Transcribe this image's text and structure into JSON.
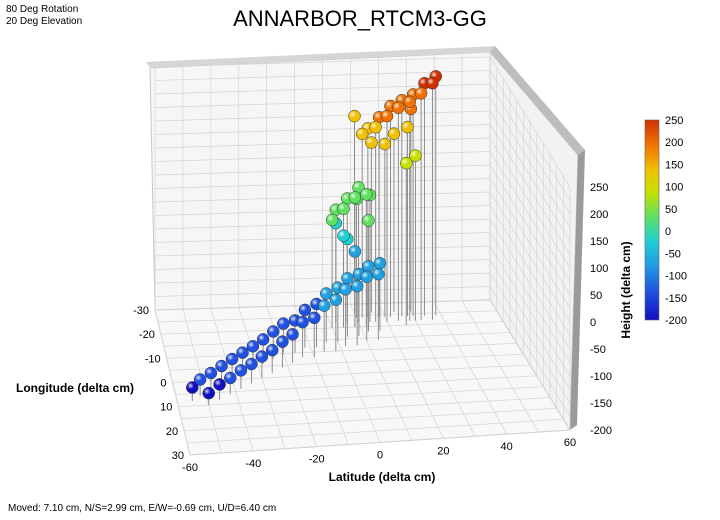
{
  "view": {
    "rotation_label": "80 Deg Rotation",
    "elevation_label": "20 Deg Elevation"
  },
  "status": {
    "text": "Moved: 7.10 cm, N/S=2.99 cm, E/W=-0.69 cm, U/D=6.40 cm"
  },
  "chart_data": {
    "type": "scatter",
    "title": "ANNARBOR_RTCM3-GG",
    "xlabel": "Latitude (delta cm)",
    "ylabel": "Longitude (delta cm)",
    "zlabel": "Height (delta cm)",
    "xlim": [
      -60,
      60
    ],
    "ylim": [
      -30,
      30
    ],
    "zlim": [
      -200,
      250
    ],
    "x_ticks": [
      "-60",
      "-40",
      "-20",
      "0",
      "20",
      "40",
      "60"
    ],
    "y_ticks": [
      "-30",
      "-20",
      "-10",
      "0",
      "10",
      "20",
      "30"
    ],
    "z_ticks": [
      "-200",
      "-150",
      "-100",
      "-50",
      "0",
      "50",
      "100",
      "150",
      "200",
      "250"
    ],
    "grid": true,
    "colorbar": {
      "label": "Height (delta cm)",
      "range": [
        -200,
        250
      ],
      "ticks": [
        "250",
        "200",
        "150",
        "100",
        "50",
        "0",
        "-50",
        "-100",
        "-150",
        "-200"
      ],
      "colors": [
        "#d03000",
        "#f07000",
        "#f0c000",
        "#c8e000",
        "#60e060",
        "#20d0d0",
        "#20a0e0",
        "#2050e0",
        "#1010c0"
      ]
    },
    "points": [
      {
        "x": -55,
        "y": 8,
        "z": -175
      },
      {
        "x": -52,
        "y": 6,
        "z": -170
      },
      {
        "x": -50,
        "y": 10,
        "z": -178
      },
      {
        "x": -48,
        "y": 4,
        "z": -168
      },
      {
        "x": -46,
        "y": 8,
        "z": -172
      },
      {
        "x": -44,
        "y": 2,
        "z": -165
      },
      {
        "x": -42,
        "y": 6,
        "z": -170
      },
      {
        "x": -40,
        "y": 0,
        "z": -162
      },
      {
        "x": -38,
        "y": 4,
        "z": -166
      },
      {
        "x": -36,
        "y": -2,
        "z": -160
      },
      {
        "x": -34,
        "y": 2,
        "z": -164
      },
      {
        "x": -32,
        "y": -4,
        "z": -158
      },
      {
        "x": -30,
        "y": 0,
        "z": -160
      },
      {
        "x": -28,
        "y": -6,
        "z": -155
      },
      {
        "x": -26,
        "y": -2,
        "z": -158
      },
      {
        "x": -24,
        "y": -8,
        "z": -150
      },
      {
        "x": -22,
        "y": -4,
        "z": -152
      },
      {
        "x": -20,
        "y": -10,
        "z": -145
      },
      {
        "x": -18,
        "y": -6,
        "z": -148
      },
      {
        "x": -16,
        "y": -10,
        "z": -140
      },
      {
        "x": -14,
        "y": -8,
        "z": -135
      },
      {
        "x": -12,
        "y": -12,
        "z": -130
      },
      {
        "x": -10,
        "y": -8,
        "z": -128
      },
      {
        "x": -8,
        "y": -12,
        "z": -120
      },
      {
        "x": -6,
        "y": -10,
        "z": -115
      },
      {
        "x": -4,
        "y": -14,
        "z": -110
      },
      {
        "x": -2,
        "y": -10,
        "z": -105
      },
      {
        "x": 0,
        "y": -14,
        "z": -100
      },
      {
        "x": 2,
        "y": -12,
        "z": -95
      },
      {
        "x": 4,
        "y": -16,
        "z": -92
      },
      {
        "x": 6,
        "y": -12,
        "z": -90
      },
      {
        "x": 8,
        "y": -16,
        "z": -85
      },
      {
        "x": 10,
        "y": -14,
        "z": -82
      },
      {
        "x": 12,
        "y": -18,
        "z": -80
      },
      {
        "x": 14,
        "y": -14,
        "z": -78
      },
      {
        "x": 16,
        "y": -18,
        "z": -75
      },
      {
        "x": 8,
        "y": -20,
        "z": -60
      },
      {
        "x": 6,
        "y": -22,
        "z": -45
      },
      {
        "x": 4,
        "y": -20,
        "z": -30
      },
      {
        "x": 2,
        "y": -22,
        "z": -15
      },
      {
        "x": 0,
        "y": -20,
        "z": 0
      },
      {
        "x": 2,
        "y": -22,
        "z": 10
      },
      {
        "x": 4,
        "y": -20,
        "z": 20
      },
      {
        "x": 6,
        "y": -22,
        "z": 30
      },
      {
        "x": 8,
        "y": -20,
        "z": 40
      },
      {
        "x": 10,
        "y": -22,
        "z": 50
      },
      {
        "x": 12,
        "y": -20,
        "z": 45
      },
      {
        "x": 14,
        "y": -22,
        "z": 35
      },
      {
        "x": 10,
        "y": -24,
        "z": 20
      },
      {
        "x": 12,
        "y": -18,
        "z": 5
      },
      {
        "x": 14,
        "y": -24,
        "z": 150
      },
      {
        "x": 16,
        "y": -22,
        "z": 160
      },
      {
        "x": 18,
        "y": -24,
        "z": 170
      },
      {
        "x": 20,
        "y": -22,
        "z": 180
      },
      {
        "x": 22,
        "y": -24,
        "z": 190
      },
      {
        "x": 24,
        "y": -22,
        "z": 195
      },
      {
        "x": 26,
        "y": -24,
        "z": 200
      },
      {
        "x": 28,
        "y": -22,
        "z": 205
      },
      {
        "x": 30,
        "y": -24,
        "z": 210
      },
      {
        "x": 32,
        "y": -22,
        "z": 220
      },
      {
        "x": 34,
        "y": -24,
        "z": 230
      },
      {
        "x": 36,
        "y": -22,
        "z": 238
      },
      {
        "x": 38,
        "y": -24,
        "z": 242
      },
      {
        "x": 30,
        "y": -26,
        "z": 175
      },
      {
        "x": 28,
        "y": -24,
        "z": 150
      },
      {
        "x": 24,
        "y": -26,
        "z": 130
      },
      {
        "x": 20,
        "y": -24,
        "z": 120
      },
      {
        "x": 16,
        "y": -26,
        "z": 115
      },
      {
        "x": 12,
        "y": -24,
        "z": 140
      },
      {
        "x": 10,
        "y": -26,
        "z": 165
      },
      {
        "x": 26,
        "y": -20,
        "z": 100
      },
      {
        "x": 30,
        "y": -22,
        "z": 105
      }
    ]
  }
}
